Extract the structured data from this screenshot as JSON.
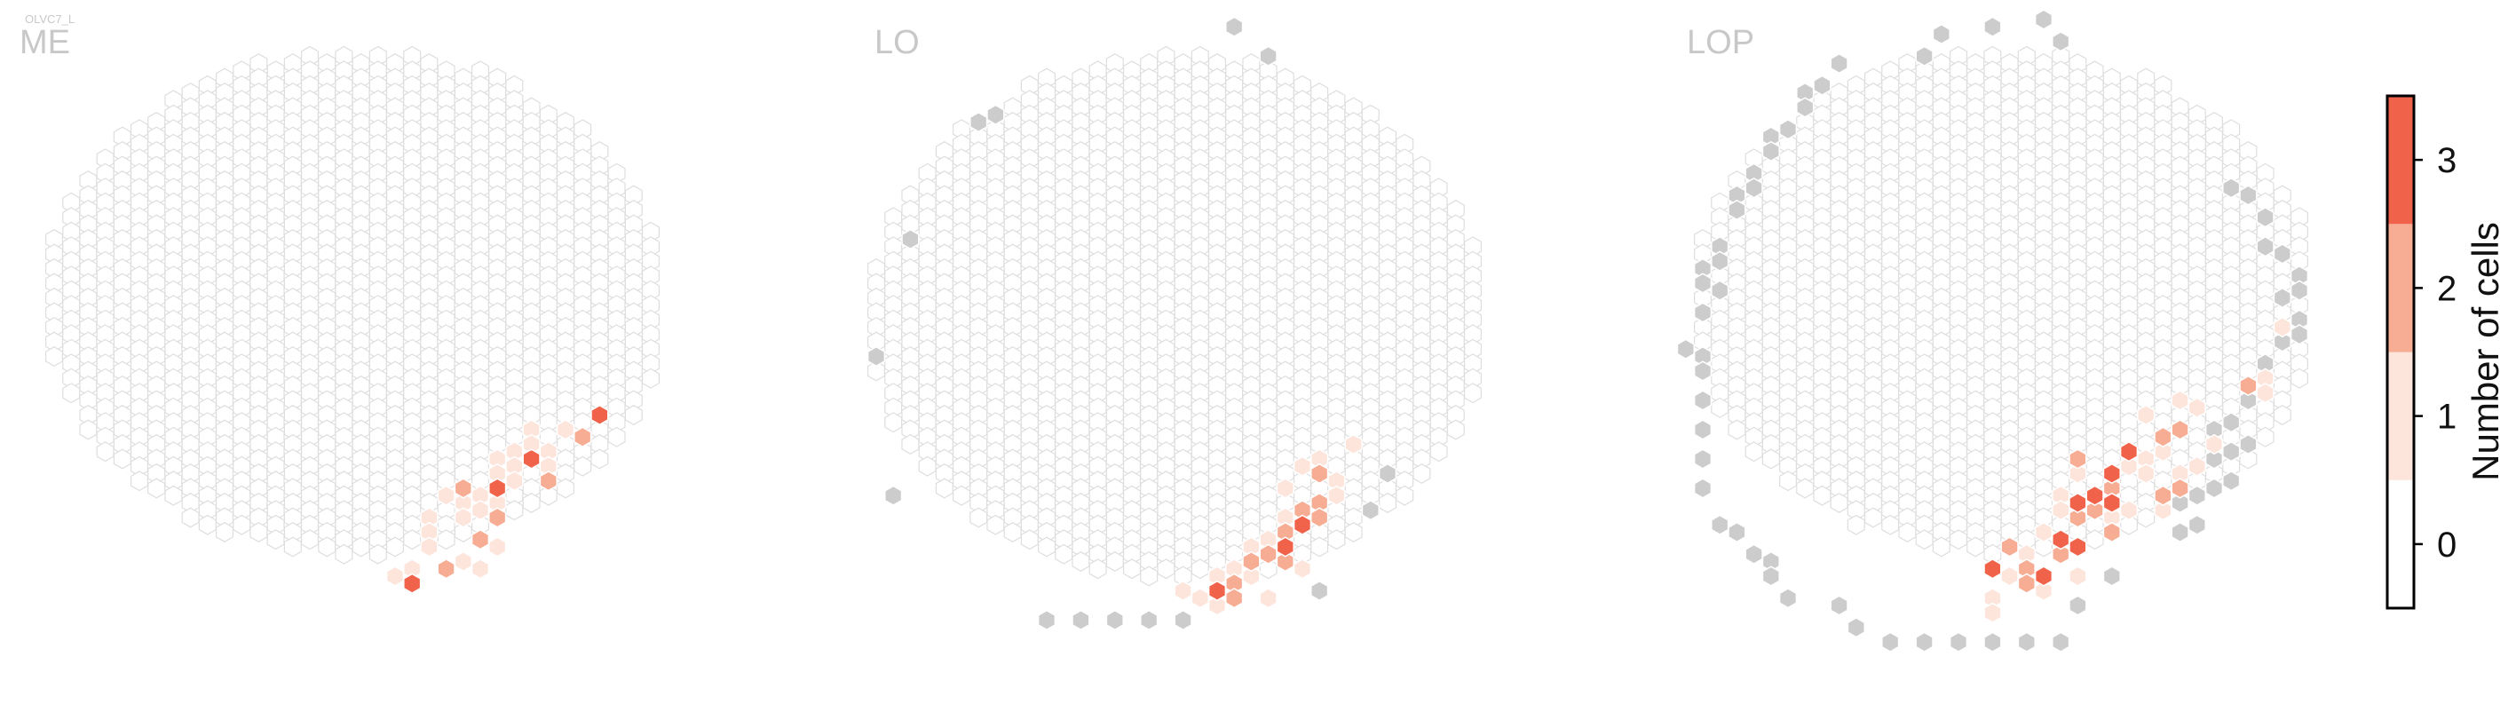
{
  "figure": {
    "super_title": "OLVC7_L"
  },
  "chart_data": {
    "type": "heatmap",
    "grid": "hexagonal",
    "colorbar": {
      "label": "Number of cells",
      "ticks": [
        0,
        1,
        2,
        3
      ],
      "range": [
        -0.5,
        3.5
      ],
      "colors": [
        "#ffffff",
        "#fde5dc",
        "#f7ac94",
        "#f0634a"
      ]
    },
    "colors": {
      "empty_outline": "#dedede",
      "missing": "#cccccc",
      "cell_outline": "#ffffff"
    },
    "panels": [
      {
        "title": "ME",
        "shape": {
          "cols": 36,
          "center": [
            17.5,
            17.5
          ],
          "rx": 18.3,
          "ry": 17.3,
          "dx": 0.5,
          "dy": 1.1,
          "row_min": -4,
          "row_max": 40
        },
        "extra_outlines": [
          [
            0,
            20
          ],
          [
            35,
            20
          ]
        ],
        "missing": [],
        "counts": [
          [
            27,
            27,
            1
          ],
          [
            27,
            28,
            1
          ],
          [
            27,
            29,
            1
          ],
          [
            28,
            26,
            1
          ],
          [
            28,
            27,
            1
          ],
          [
            29,
            27,
            1
          ],
          [
            29,
            28,
            1
          ],
          [
            30,
            26,
            1
          ],
          [
            26,
            28,
            1
          ],
          [
            26,
            29,
            1
          ],
          [
            25,
            30,
            1
          ],
          [
            25,
            31,
            1
          ],
          [
            24,
            31,
            1
          ],
          [
            24,
            32,
            1
          ],
          [
            22,
            32,
            1
          ],
          [
            22,
            33,
            1
          ],
          [
            23,
            30,
            1
          ],
          [
            22,
            34,
            1
          ],
          [
            21,
            35,
            1
          ],
          [
            20,
            36,
            1
          ],
          [
            24,
            35,
            1
          ],
          [
            25,
            35,
            1
          ],
          [
            26,
            34,
            1
          ],
          [
            26,
            31,
            1
          ],
          [
            31,
            26,
            2
          ],
          [
            29,
            29,
            2
          ],
          [
            25,
            33,
            2
          ],
          [
            26,
            32,
            2
          ],
          [
            23,
            35,
            2
          ],
          [
            24,
            30,
            2
          ],
          [
            32,
            25,
            3
          ],
          [
            28,
            28,
            3
          ],
          [
            26,
            30,
            3
          ],
          [
            21,
            36,
            3
          ]
        ]
      },
      {
        "title": "LO",
        "shape": {
          "cols": 36,
          "center": [
            17.5,
            18.5
          ],
          "rx": 18.2,
          "ry": 18.0,
          "dx": 0.5,
          "dy": 1.1,
          "row_min": -3,
          "row_max": 40
        },
        "extra_outlines": [],
        "missing": [
          [
            21,
            -2
          ],
          [
            23,
            0
          ],
          [
            6,
            5
          ],
          [
            7,
            4
          ],
          [
            2,
            13
          ],
          [
            0,
            21
          ],
          [
            1,
            30
          ],
          [
            30,
            29
          ],
          [
            29,
            31
          ],
          [
            26,
            37
          ],
          [
            10,
            39
          ],
          [
            12,
            39
          ],
          [
            14,
            39
          ],
          [
            16,
            39
          ],
          [
            18,
            39
          ]
        ],
        "counts": [
          [
            25,
            28,
            1
          ],
          [
            26,
            28,
            1
          ],
          [
            27,
            29,
            1
          ],
          [
            24,
            30,
            1
          ],
          [
            27,
            30,
            1
          ],
          [
            24,
            32,
            1
          ],
          [
            23,
            33,
            1
          ],
          [
            22,
            34,
            1
          ],
          [
            21,
            35,
            1
          ],
          [
            20,
            36,
            1
          ],
          [
            19,
            37,
            1
          ],
          [
            18,
            37,
            1
          ],
          [
            20,
            38,
            1
          ],
          [
            22,
            36,
            1
          ],
          [
            25,
            35,
            1
          ],
          [
            28,
            27,
            1
          ],
          [
            23,
            37,
            1
          ],
          [
            26,
            29,
            2
          ],
          [
            25,
            31,
            2
          ],
          [
            26,
            31,
            2
          ],
          [
            24,
            33,
            2
          ],
          [
            26,
            32,
            2
          ],
          [
            23,
            34,
            2
          ],
          [
            24,
            35,
            2
          ],
          [
            22,
            35,
            2
          ],
          [
            21,
            36,
            2
          ],
          [
            21,
            37,
            2
          ],
          [
            25,
            32,
            3
          ],
          [
            24,
            34,
            3
          ],
          [
            20,
            37,
            3
          ]
        ]
      },
      {
        "title": "LOP",
        "shape": {
          "cols": 36,
          "center": [
            17.5,
            17.5
          ],
          "rx": 18.5,
          "ry": 17.2,
          "dx": 0.5,
          "dy": 1.1,
          "row_min": -4,
          "row_max": 40
        },
        "extra_outlines": [],
        "missing": [
          [
            20,
            -2
          ],
          [
            21,
            -1
          ],
          [
            17,
            -2
          ],
          [
            14,
            -1
          ],
          [
            13,
            0
          ],
          [
            8,
            1
          ],
          [
            7,
            2
          ],
          [
            6,
            3
          ],
          [
            6,
            4
          ],
          [
            5,
            5
          ],
          [
            4,
            6
          ],
          [
            4,
            7
          ],
          [
            3,
            8
          ],
          [
            3,
            9
          ],
          [
            2,
            10
          ],
          [
            2,
            11
          ],
          [
            1,
            13
          ],
          [
            1,
            14
          ],
          [
            0,
            15
          ],
          [
            0,
            16
          ],
          [
            1,
            16
          ],
          [
            0,
            18
          ],
          [
            -1,
            20
          ],
          [
            0,
            21
          ],
          [
            0,
            22
          ],
          [
            0,
            24
          ],
          [
            0,
            26
          ],
          [
            0,
            28
          ],
          [
            0,
            30
          ],
          [
            1,
            32
          ],
          [
            2,
            33
          ],
          [
            3,
            34
          ],
          [
            4,
            35
          ],
          [
            4,
            36
          ],
          [
            5,
            37
          ],
          [
            8,
            38
          ],
          [
            9,
            39
          ],
          [
            11,
            40
          ],
          [
            13,
            40
          ],
          [
            15,
            40
          ],
          [
            17,
            40
          ],
          [
            19,
            40
          ],
          [
            21,
            40
          ],
          [
            31,
            9
          ],
          [
            32,
            10
          ],
          [
            33,
            11
          ],
          [
            33,
            13
          ],
          [
            34,
            14
          ],
          [
            35,
            15
          ],
          [
            35,
            16
          ],
          [
            34,
            17
          ],
          [
            35,
            18
          ],
          [
            35,
            19
          ],
          [
            34,
            20
          ],
          [
            33,
            21
          ],
          [
            32,
            24
          ],
          [
            31,
            25
          ],
          [
            30,
            26
          ],
          [
            32,
            27
          ],
          [
            31,
            27
          ],
          [
            30,
            28
          ],
          [
            31,
            29
          ],
          [
            29,
            30
          ],
          [
            30,
            30
          ],
          [
            28,
            31
          ],
          [
            29,
            32
          ],
          [
            28,
            33
          ],
          [
            24,
            36
          ],
          [
            22,
            38
          ]
        ],
        "counts": [
          [
            34,
            19,
            1
          ],
          [
            33,
            22,
            1
          ],
          [
            28,
            24,
            1
          ],
          [
            29,
            24,
            1
          ],
          [
            26,
            25,
            1
          ],
          [
            27,
            27,
            1
          ],
          [
            26,
            28,
            1
          ],
          [
            25,
            28,
            1
          ],
          [
            26,
            29,
            1
          ],
          [
            25,
            31,
            1
          ],
          [
            24,
            32,
            1
          ],
          [
            22,
            29,
            1
          ],
          [
            21,
            30,
            1
          ],
          [
            21,
            31,
            1
          ],
          [
            20,
            33,
            1
          ],
          [
            19,
            34,
            1
          ],
          [
            18,
            36,
            1
          ],
          [
            17,
            37,
            1
          ],
          [
            17,
            38,
            1
          ],
          [
            20,
            37,
            1
          ],
          [
            22,
            36,
            1
          ],
          [
            27,
            31,
            1
          ],
          [
            29,
            28,
            1
          ],
          [
            28,
            29,
            1
          ],
          [
            30,
            27,
            1
          ],
          [
            33,
            23,
            1
          ],
          [
            32,
            23,
            2
          ],
          [
            28,
            26,
            2
          ],
          [
            27,
            26,
            2
          ],
          [
            27,
            30,
            2
          ],
          [
            24,
            30,
            2
          ],
          [
            23,
            31,
            2
          ],
          [
            22,
            32,
            2
          ],
          [
            19,
            35,
            2
          ],
          [
            18,
            34,
            2
          ],
          [
            19,
            36,
            2
          ],
          [
            21,
            34,
            2
          ],
          [
            24,
            33,
            2
          ],
          [
            28,
            30,
            2
          ],
          [
            22,
            28,
            2
          ],
          [
            25,
            27,
            3
          ],
          [
            23,
            30,
            3
          ],
          [
            24,
            29,
            3
          ],
          [
            24,
            31,
            3
          ],
          [
            22,
            31,
            3
          ],
          [
            21,
            33,
            3
          ],
          [
            17,
            35,
            3
          ],
          [
            20,
            36,
            3
          ],
          [
            22,
            34,
            3
          ]
        ]
      }
    ]
  }
}
